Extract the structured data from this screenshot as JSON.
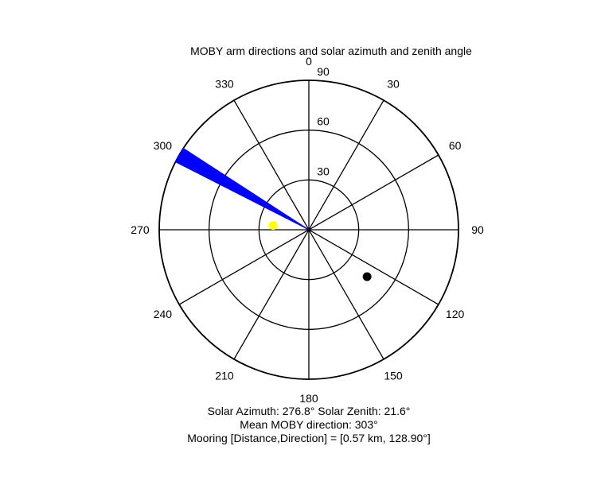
{
  "chart_data": {
    "type": "polar",
    "title": "MOBY arm directions and solar azimuth and zenith angle",
    "angular_axis": {
      "zero_direction": "north",
      "rotation": "clockwise",
      "tick_step_deg": 30,
      "tick_labels": [
        "0",
        "30",
        "60",
        "90",
        "120",
        "150",
        "180",
        "210",
        "240",
        "270",
        "300",
        "330"
      ]
    },
    "radial_axis": {
      "quantity": "zenith angle",
      "range": [
        0,
        90
      ],
      "ticks": [
        30,
        60,
        90
      ],
      "tick_labels": [
        "30",
        "60",
        "90"
      ]
    },
    "arm_directions": {
      "color": "#0000ff",
      "direction_range_deg": [
        297,
        303
      ],
      "radius": 90
    },
    "solar_position": {
      "azimuth": 276.8,
      "zenith": 21.6,
      "color": "#ffff00"
    },
    "mooring": {
      "direction_deg": 128.9,
      "plot_radius": 45,
      "color": "#000000"
    }
  },
  "annotations": {
    "solar_line": "Solar Azimuth: 276.8°   Solar Zenith: 21.6°",
    "moby_line": "Mean MOBY direction: 303°",
    "mooring_line": "Mooring [Distance,Direction] = [0.57 km, 128.90°]"
  }
}
